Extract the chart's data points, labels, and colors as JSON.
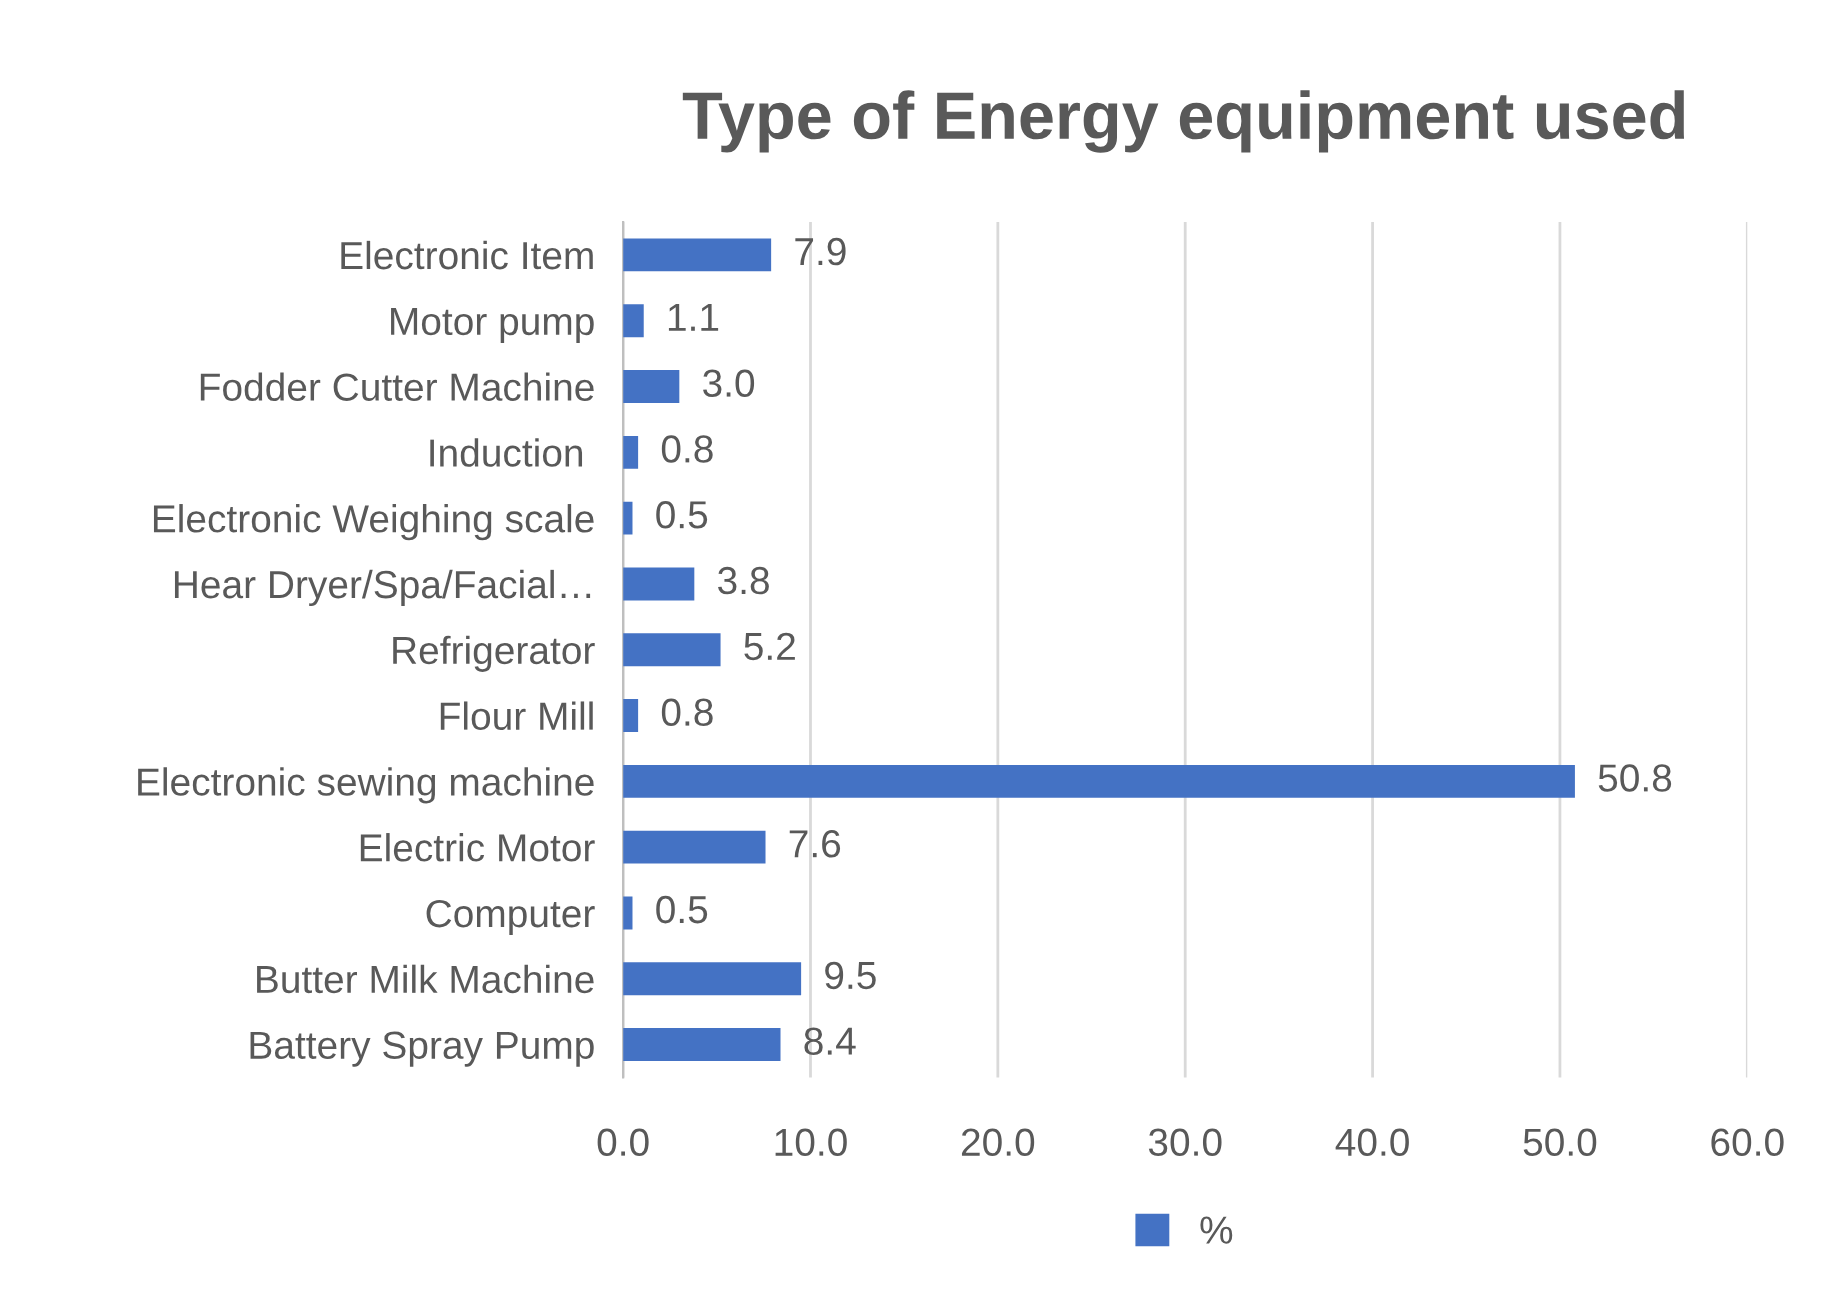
{
  "chart_data": {
    "type": "bar",
    "orientation": "horizontal",
    "title": "Type of Energy equipment used",
    "categories": [
      "Electronic Item",
      "Motor pump",
      "Fodder Cutter Machine",
      "Induction ",
      "Electronic Weighing scale",
      "Hear Dryer/Spa/Facial…",
      "Refrigerator",
      "Flour Mill",
      "Electronic sewing machine",
      "Electric Motor",
      "Computer",
      "Butter Milk Machine",
      "Battery Spray Pump"
    ],
    "series": [
      {
        "name": "%",
        "color": "#4472c4",
        "values": [
          7.9,
          1.1,
          3.0,
          0.8,
          0.5,
          3.8,
          5.2,
          0.8,
          50.8,
          7.6,
          0.5,
          9.5,
          8.4
        ],
        "value_labels": [
          "7.9",
          "1.1",
          "3.0",
          "0.8",
          "0.5",
          "3.8",
          "5.2",
          "0.8",
          "50.8",
          "7.6",
          "0.5",
          "9.5",
          "8.4"
        ]
      }
    ],
    "xlim": [
      0,
      60
    ],
    "xticks": [
      {
        "value": 0,
        "label": "0.0"
      },
      {
        "value": 10,
        "label": "10.0"
      },
      {
        "value": 20,
        "label": "20.0"
      },
      {
        "value": 30,
        "label": "30.0"
      },
      {
        "value": 40,
        "label": "40.0"
      },
      {
        "value": 50,
        "label": "50.0"
      },
      {
        "value": 60,
        "label": "60.0"
      }
    ],
    "grid": "x",
    "legend": "bottom"
  }
}
